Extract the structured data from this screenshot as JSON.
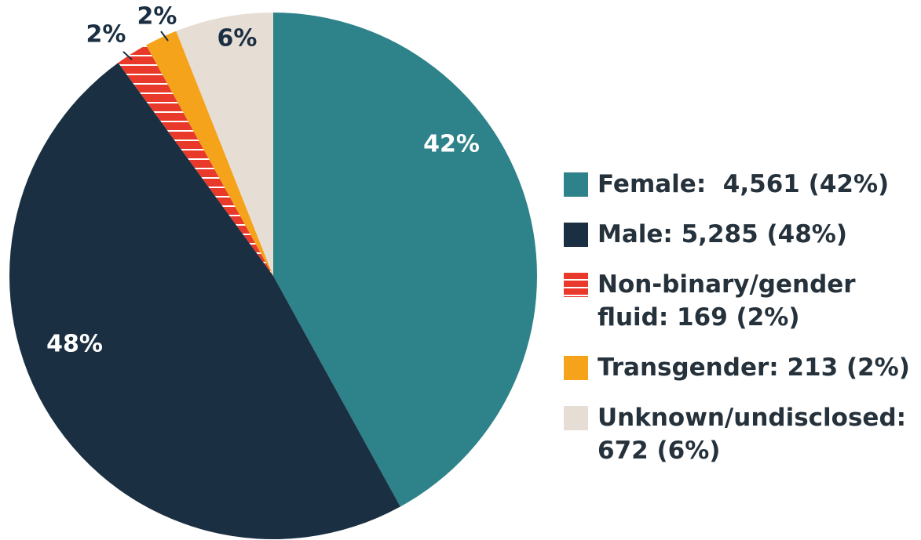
{
  "chart_data": {
    "type": "pie",
    "categories": [
      "Female:  4,561 (42%)",
      "Male: 5,285 (48%)",
      "Non-binary/gender fluid: 169 (2%)",
      "Transgender: 213 (2%)",
      "Unknown/undisclosed: 672 (6%)"
    ],
    "values": [
      42,
      48,
      2,
      2,
      6
    ],
    "value_labels": [
      "42%",
      "48%",
      "2%",
      "2%",
      "6%"
    ],
    "colors": [
      "#2e8289",
      "#1a2f42",
      "#e8392b",
      "#f5a31a",
      "#e6ddd4"
    ],
    "legend": "right"
  }
}
